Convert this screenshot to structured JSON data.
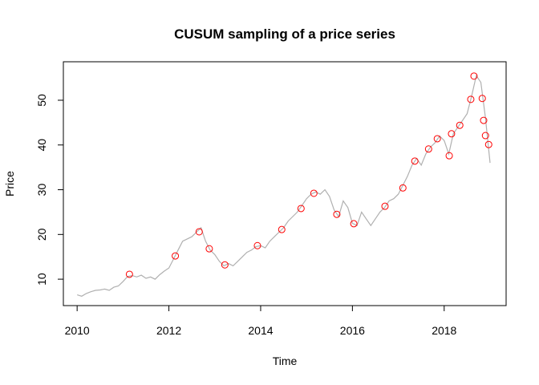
{
  "chart_data": {
    "type": "line",
    "title": "CUSUM sampling of a price series",
    "x_label": "Time",
    "y_label": "Price",
    "xlim": [
      2009.7,
      2019.35
    ],
    "ylim": [
      4.1,
      58.6
    ],
    "xticks": [
      2010,
      2012,
      2014,
      2016,
      2018
    ],
    "yticks": [
      10,
      20,
      30,
      40,
      50
    ],
    "series": [
      {
        "kind": "line",
        "color": "#b0b0b0",
        "x": [
          2010.0,
          2010.1,
          2010.2,
          2010.3,
          2010.4,
          2010.5,
          2010.6,
          2010.7,
          2010.8,
          2010.9,
          2011.0,
          2011.1,
          2011.2,
          2011.3,
          2011.4,
          2011.5,
          2011.6,
          2011.7,
          2011.8,
          2011.9,
          2012.0,
          2012.1,
          2012.2,
          2012.3,
          2012.4,
          2012.5,
          2012.6,
          2012.7,
          2012.8,
          2012.9,
          2013.0,
          2013.1,
          2013.2,
          2013.3,
          2013.4,
          2013.5,
          2013.6,
          2013.7,
          2013.8,
          2013.9,
          2014.0,
          2014.1,
          2014.2,
          2014.3,
          2014.4,
          2014.5,
          2014.6,
          2014.7,
          2014.8,
          2014.9,
          2015.0,
          2015.1,
          2015.2,
          2015.3,
          2015.4,
          2015.5,
          2015.6,
          2015.7,
          2015.8,
          2015.9,
          2016.0,
          2016.1,
          2016.2,
          2016.3,
          2016.4,
          2016.5,
          2016.6,
          2016.7,
          2016.8,
          2016.9,
          2017.0,
          2017.1,
          2017.2,
          2017.3,
          2017.4,
          2017.5,
          2017.6,
          2017.7,
          2017.8,
          2017.9,
          2018.0,
          2018.1,
          2018.2,
          2018.3,
          2018.4,
          2018.5,
          2018.6,
          2018.7,
          2018.8,
          2018.9,
          2018.95,
          2019.0
        ],
        "values": [
          6.5,
          6.2,
          6.8,
          7.2,
          7.5,
          7.6,
          7.8,
          7.5,
          8.2,
          8.5,
          9.5,
          10.6,
          10.8,
          10.5,
          10.9,
          10.2,
          10.5,
          10.0,
          11.0,
          11.8,
          12.5,
          14.5,
          16.5,
          18.5,
          19.0,
          19.5,
          20.5,
          21.5,
          18.5,
          16.5,
          15.5,
          14.0,
          13.0,
          13.5,
          13.0,
          14.0,
          15.0,
          16.0,
          16.5,
          17.3,
          17.5,
          17.0,
          18.5,
          19.5,
          20.5,
          21.5,
          23.0,
          24.0,
          25.0,
          26.5,
          28.0,
          29.0,
          29.5,
          29.0,
          30.0,
          28.5,
          25.5,
          24.0,
          27.5,
          26.0,
          22.5,
          22.0,
          25.0,
          23.5,
          22.0,
          23.5,
          25.0,
          26.0,
          27.5,
          28.0,
          29.0,
          31.0,
          33.0,
          35.5,
          37.0,
          35.5,
          38.0,
          39.5,
          40.5,
          42.0,
          41.0,
          38.0,
          42.5,
          44.0,
          45.5,
          47.0,
          51.0,
          55.5,
          54.0,
          46.0,
          41.0,
          36.0
        ]
      },
      {
        "kind": "points",
        "color": "#ff0000",
        "x": [
          2011.14,
          2012.14,
          2012.66,
          2012.88,
          2013.22,
          2013.93,
          2014.46,
          2014.88,
          2015.16,
          2015.66,
          2016.03,
          2016.71,
          2017.1,
          2017.36,
          2017.66,
          2017.85,
          2018.11,
          2018.16,
          2018.34,
          2018.58,
          2018.65,
          2018.83,
          2018.86,
          2018.9,
          2018.97
        ],
        "values": [
          11.1,
          15.2,
          20.6,
          16.8,
          13.2,
          17.5,
          21.1,
          25.8,
          29.2,
          24.5,
          22.4,
          26.3,
          30.4,
          36.4,
          39.1,
          41.4,
          37.6,
          42.5,
          44.4,
          50.2,
          55.4,
          50.4,
          45.5,
          42.1,
          40.1
        ]
      }
    ]
  }
}
